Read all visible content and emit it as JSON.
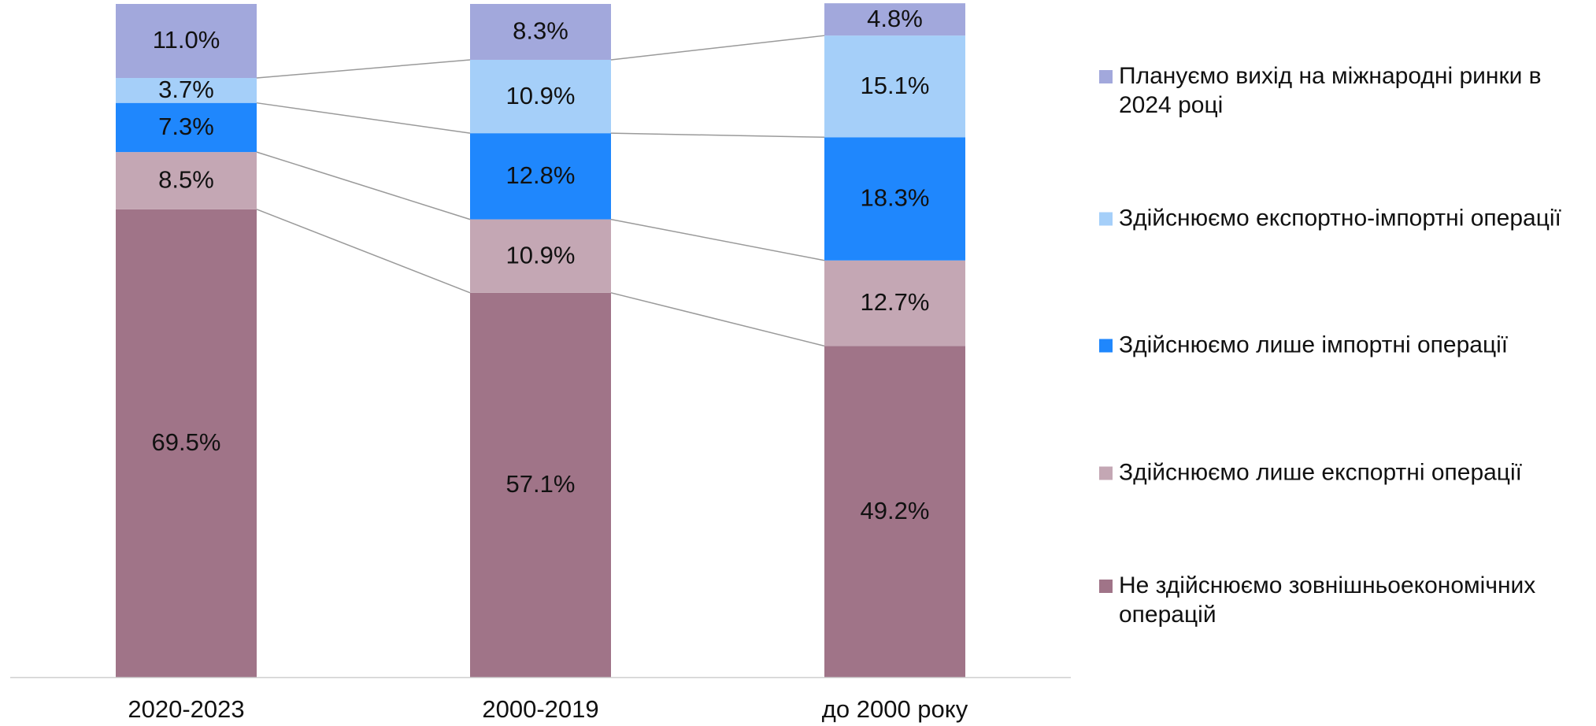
{
  "chart_data": {
    "type": "stacked_bar",
    "categories": [
      "2020-2023",
      "2000-2019",
      "до 2000 року"
    ],
    "ylim": [
      0,
      100
    ],
    "series": [
      {
        "name": "Не здійснюємо зовнішньоекономічних операцій",
        "color": "#a07488",
        "values": [
          69.5,
          57.1,
          49.2
        ],
        "value_labels": [
          "69.5%",
          "57.1%",
          "49.2%"
        ]
      },
      {
        "name": "Здійснюємо лише експортні операції",
        "color": "#c4a7b4",
        "values": [
          8.5,
          10.9,
          12.7
        ],
        "value_labels": [
          "8.5%",
          "10.9%",
          "12.7%"
        ]
      },
      {
        "name": "Здійснюємо лише імпортні операції",
        "color": "#1f87fd",
        "values": [
          7.3,
          12.8,
          18.3
        ],
        "value_labels": [
          "7.3%",
          "12.8%",
          "18.3%"
        ]
      },
      {
        "name": "Здійснюємо експортно-імпортні операції",
        "color": "#a5cff9",
        "values": [
          3.7,
          10.9,
          15.1
        ],
        "value_labels": [
          "3.7%",
          "10.9%",
          "15.1%"
        ]
      },
      {
        "name": "Плануємо вихід на міжнародні ринки в 2024 році",
        "color": "#a2a8dc",
        "values": [
          11.0,
          8.3,
          4.8
        ],
        "value_labels": [
          "11.0%",
          "8.3%",
          "4.8%"
        ]
      }
    ]
  }
}
